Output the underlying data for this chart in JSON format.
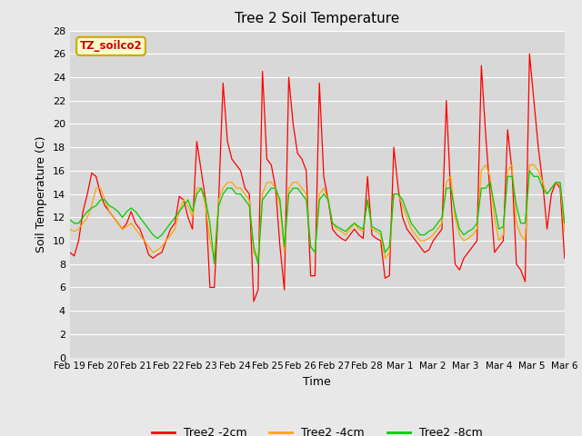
{
  "title": "Tree 2 Soil Temperature",
  "xlabel": "Time",
  "ylabel": "Soil Temperature (C)",
  "ylim": [
    0,
    28
  ],
  "yticks": [
    0,
    2,
    4,
    6,
    8,
    10,
    12,
    14,
    16,
    18,
    20,
    22,
    24,
    26,
    28
  ],
  "xtick_labels": [
    "Feb 19",
    "Feb 20",
    "Feb 21",
    "Feb 22",
    "Feb 23",
    "Feb 24",
    "Feb 25",
    "Feb 26",
    "Feb 27",
    "Feb 28",
    "Mar 1",
    "Mar 2",
    "Mar 3",
    "Mar 4",
    "Mar 5",
    "Mar 6"
  ],
  "legend_labels": [
    "Tree2 -2cm",
    "Tree2 -4cm",
    "Tree2 -8cm"
  ],
  "line_colors": [
    "#ff0000",
    "#ffa500",
    "#00cc00"
  ],
  "annotation_text": "TZ_soilco2",
  "fig_bg": "#e8e8e8",
  "ax_bg": "#d8d8d8",
  "grid_color": "#ffffff",
  "series_2cm": [
    9.0,
    8.7,
    10.0,
    12.5,
    14.0,
    15.8,
    15.5,
    14.0,
    13.0,
    12.5,
    12.0,
    11.5,
    11.0,
    11.5,
    12.5,
    11.5,
    11.0,
    10.0,
    8.8,
    8.5,
    8.8,
    9.0,
    10.0,
    11.0,
    11.5,
    13.8,
    13.5,
    12.0,
    11.0,
    18.5,
    16.0,
    13.5,
    6.0,
    6.0,
    13.5,
    23.5,
    18.5,
    17.0,
    16.5,
    16.0,
    14.5,
    14.0,
    4.8,
    5.8,
    24.5,
    17.0,
    16.5,
    14.5,
    9.5,
    5.8,
    24.0,
    20.0,
    17.5,
    17.0,
    16.0,
    7.0,
    7.0,
    23.5,
    15.5,
    13.5,
    11.0,
    10.5,
    10.2,
    10.0,
    10.5,
    11.0,
    10.5,
    10.2,
    15.5,
    10.5,
    10.2,
    10.0,
    6.8,
    7.0,
    18.0,
    14.5,
    12.0,
    11.0,
    10.5,
    10.0,
    9.5,
    9.0,
    9.2,
    10.0,
    10.5,
    11.0,
    22.0,
    14.0,
    8.0,
    7.5,
    8.5,
    9.0,
    9.5,
    10.0,
    25.0,
    19.0,
    14.0,
    9.0,
    9.5,
    10.0,
    19.5,
    16.0,
    8.0,
    7.5,
    6.5,
    26.0,
    22.0,
    18.0,
    15.0,
    11.0,
    14.0,
    15.0,
    14.5,
    8.5
  ],
  "series_4cm": [
    11.0,
    10.8,
    11.0,
    11.5,
    12.0,
    13.0,
    14.5,
    14.5,
    13.5,
    12.5,
    12.0,
    11.5,
    11.0,
    11.2,
    11.5,
    11.0,
    10.5,
    10.0,
    9.5,
    9.0,
    9.2,
    9.5,
    10.0,
    10.5,
    11.0,
    12.5,
    13.5,
    13.0,
    12.0,
    14.5,
    14.5,
    13.0,
    10.0,
    8.5,
    13.5,
    14.5,
    15.0,
    15.0,
    14.5,
    14.5,
    14.0,
    13.5,
    9.0,
    8.5,
    14.0,
    15.0,
    15.0,
    14.5,
    13.0,
    9.0,
    14.5,
    15.0,
    15.0,
    14.5,
    14.0,
    9.5,
    9.0,
    14.0,
    14.5,
    13.5,
    11.5,
    11.0,
    10.8,
    10.5,
    11.0,
    11.5,
    11.0,
    10.8,
    13.5,
    11.0,
    10.8,
    10.5,
    8.5,
    9.0,
    14.0,
    14.0,
    13.0,
    12.0,
    11.0,
    10.5,
    10.0,
    10.0,
    10.2,
    10.5,
    11.0,
    11.5,
    15.0,
    15.5,
    12.0,
    10.5,
    10.0,
    10.2,
    10.5,
    11.0,
    16.0,
    16.5,
    15.5,
    12.0,
    10.0,
    10.5,
    16.0,
    16.5,
    11.5,
    10.5,
    10.0,
    16.5,
    16.5,
    16.0,
    15.0,
    14.0,
    14.5,
    15.0,
    14.8,
    10.8
  ],
  "series_8cm": [
    11.8,
    11.5,
    11.5,
    12.0,
    12.5,
    12.8,
    13.0,
    13.5,
    13.5,
    13.0,
    12.8,
    12.5,
    12.0,
    12.5,
    12.8,
    12.5,
    12.0,
    11.5,
    11.0,
    10.5,
    10.2,
    10.5,
    11.0,
    11.5,
    12.0,
    12.5,
    13.0,
    13.5,
    12.5,
    14.0,
    14.5,
    13.5,
    11.5,
    8.0,
    13.0,
    14.0,
    14.5,
    14.5,
    14.0,
    14.0,
    13.5,
    13.0,
    9.5,
    8.0,
    13.5,
    14.0,
    14.5,
    14.5,
    13.5,
    9.5,
    14.0,
    14.5,
    14.5,
    14.0,
    13.5,
    9.5,
    9.0,
    13.5,
    14.0,
    13.5,
    11.5,
    11.2,
    11.0,
    10.8,
    11.2,
    11.5,
    11.2,
    11.0,
    13.5,
    11.2,
    11.0,
    10.8,
    9.0,
    9.5,
    14.0,
    14.0,
    13.5,
    12.5,
    11.5,
    11.0,
    10.5,
    10.5,
    10.8,
    11.0,
    11.5,
    12.0,
    14.5,
    14.5,
    12.5,
    11.0,
    10.5,
    10.8,
    11.0,
    11.5,
    14.5,
    14.5,
    15.0,
    13.0,
    11.0,
    11.2,
    15.5,
    15.5,
    13.0,
    11.5,
    11.5,
    16.0,
    15.5,
    15.5,
    14.5,
    14.0,
    14.5,
    15.0,
    15.0,
    11.5
  ]
}
